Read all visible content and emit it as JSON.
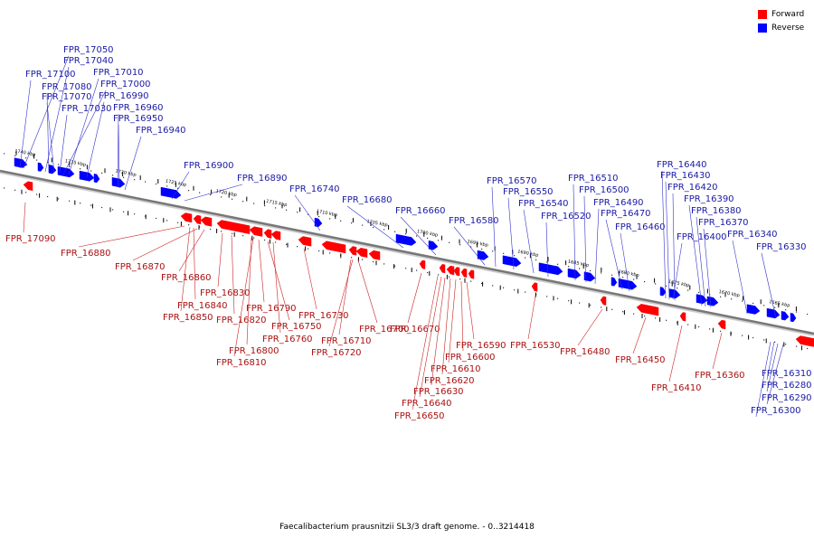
{
  "legend": {
    "forward": {
      "label": "Forward",
      "color": "#ff0000"
    },
    "reverse": {
      "label": "Reverse",
      "color": "#0000ff"
    }
  },
  "caption": "Faecalibacterium prausnitzii SL3/3 draft genome. - 0..3214418",
  "scale_ticks": [
    "1740 kbp",
    "1735 kbp",
    "1730 kbp",
    "1725 kbp",
    "1720 kbp",
    "1715 kbp",
    "1710 kbp",
    "1705 kbp",
    "1700 kbp",
    "1695 kbp",
    "1690 kbp",
    "1685 kbp",
    "1680 kbp",
    "1675 kbp",
    "1670 kbp",
    "1665 kbp"
  ],
  "reverse_labels": [
    "FPR_17050",
    "FPR_17040",
    "FPR_17010",
    "FPR_17100",
    "FPR_17000",
    "FPR_17080",
    "FPR_16990",
    "FPR_17070",
    "FPR_16960",
    "FPR_17030",
    "FPR_16950",
    "FPR_16940",
    "FPR_16900",
    "FPR_16890",
    "FPR_16740",
    "FPR_16680",
    "FPR_16660",
    "FPR_16580",
    "FPR_16570",
    "FPR_16550",
    "FPR_16540",
    "FPR_16520",
    "FPR_16510",
    "FPR_16500",
    "FPR_16490",
    "FPR_16470",
    "FPR_16460",
    "FPR_16440",
    "FPR_16430",
    "FPR_16420",
    "FPR_16390",
    "FPR_16380",
    "FPR_16370",
    "FPR_16400",
    "FPR_16340",
    "FPR_16330",
    "FPR_16310",
    "FPR_16280",
    "FPR_16290",
    "FPR_16300"
  ],
  "forward_labels": [
    "FPR_17090",
    "FPR_16880",
    "FPR_16870",
    "FPR_16860",
    "FPR_16830",
    "FPR_16840",
    "FPR_16850",
    "FPR_16820",
    "FPR_16790",
    "FPR_16730",
    "FPR_16750",
    "FPR_16760",
    "FPR_16800",
    "FPR_16810",
    "FPR_16700",
    "FPR_16710",
    "FPR_16720",
    "FPR_16670",
    "FPR_16590",
    "FPR_16600",
    "FPR_16610",
    "FPR_16620",
    "FPR_16630",
    "FPR_16640",
    "FPR_16650",
    "FPR_16530",
    "FPR_16480",
    "FPR_16450",
    "FPR_16410",
    "FPR_16360"
  ]
}
